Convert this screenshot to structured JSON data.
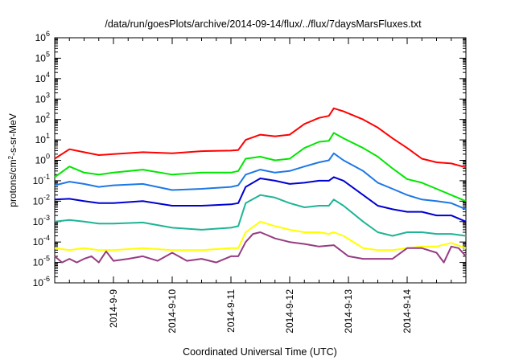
{
  "chart_data": {
    "type": "line",
    "title": "/data/run/goesPlots/archive/2014-09-14/flux/../flux/7daysMarsFluxes.txt",
    "xlabel": "Coordinated Universal Time (UTC)",
    "ylabel": {
      "base": "protons/cm",
      "sup": "2",
      "rest": "-s-sr-MeV"
    },
    "x_range": [
      "2014-09-08T00:00",
      "2014-09-15T00:00"
    ],
    "x_ticks": [
      "2014-9-9",
      "2014-9-10",
      "2014-9-11",
      "2014-9-12",
      "2014-9-13",
      "2014-9-14"
    ],
    "y_scale": "log",
    "y_range_exp": [
      -6,
      6
    ],
    "y_ticks_exp": [
      -6,
      -5,
      -4,
      -3,
      -2,
      -1,
      0,
      1,
      2,
      3,
      4,
      5,
      6
    ],
    "y_tick_base": "10",
    "grid": false,
    "legend": "none",
    "series": [
      {
        "color": "#ff0000",
        "x": [
          "2014-09-08T00:00",
          "2014-09-08T06:00",
          "2014-09-08T12:00",
          "2014-09-08T18:00",
          "2014-09-09T00:00",
          "2014-09-09T12:00",
          "2014-09-10T00:00",
          "2014-09-10T12:00",
          "2014-09-11T00:00",
          "2014-09-11T03:00",
          "2014-09-11T06:00",
          "2014-09-11T12:00",
          "2014-09-11T18:00",
          "2014-09-12T00:00",
          "2014-09-12T06:00",
          "2014-09-12T12:00",
          "2014-09-12T16:00",
          "2014-09-12T18:00",
          "2014-09-12T22:00",
          "2014-09-13T06:00",
          "2014-09-13T12:00",
          "2014-09-13T18:00",
          "2014-09-14T00:00",
          "2014-09-14T06:00",
          "2014-09-14T12:00",
          "2014-09-14T18:00",
          "2014-09-15T00:00"
        ],
        "y": [
          1.2,
          3.5,
          2.5,
          1.8,
          2.0,
          2.5,
          2.2,
          2.8,
          3.0,
          3.2,
          10,
          18,
          15,
          18,
          60,
          120,
          150,
          350,
          250,
          100,
          40,
          12,
          4,
          1.2,
          0.8,
          0.7,
          0.45
        ]
      },
      {
        "color": "#00e600",
        "x": [
          "2014-09-08T00:00",
          "2014-09-08T06:00",
          "2014-09-08T12:00",
          "2014-09-08T18:00",
          "2014-09-09T00:00",
          "2014-09-09T12:00",
          "2014-09-10T00:00",
          "2014-09-10T12:00",
          "2014-09-11T00:00",
          "2014-09-11T03:00",
          "2014-09-11T06:00",
          "2014-09-11T12:00",
          "2014-09-11T18:00",
          "2014-09-12T00:00",
          "2014-09-12T06:00",
          "2014-09-12T12:00",
          "2014-09-12T16:00",
          "2014-09-12T18:00",
          "2014-09-12T22:00",
          "2014-09-13T06:00",
          "2014-09-13T12:00",
          "2014-09-13T18:00",
          "2014-09-14T00:00",
          "2014-09-14T06:00",
          "2014-09-14T12:00",
          "2014-09-14T18:00",
          "2014-09-15T00:00"
        ],
        "y": [
          0.15,
          0.5,
          0.25,
          0.2,
          0.25,
          0.35,
          0.2,
          0.25,
          0.25,
          0.3,
          1.2,
          1.5,
          1.0,
          1.2,
          4,
          8,
          9,
          22,
          12,
          4,
          1.5,
          0.4,
          0.12,
          0.08,
          0.04,
          0.02,
          0.01
        ]
      },
      {
        "color": "#1e78e6",
        "x": [
          "2014-09-08T00:00",
          "2014-09-08T06:00",
          "2014-09-08T12:00",
          "2014-09-08T18:00",
          "2014-09-09T00:00",
          "2014-09-09T12:00",
          "2014-09-10T00:00",
          "2014-09-10T12:00",
          "2014-09-11T00:00",
          "2014-09-11T03:00",
          "2014-09-11T06:00",
          "2014-09-11T12:00",
          "2014-09-11T18:00",
          "2014-09-12T00:00",
          "2014-09-12T06:00",
          "2014-09-12T12:00",
          "2014-09-12T16:00",
          "2014-09-12T18:00",
          "2014-09-12T22:00",
          "2014-09-13T06:00",
          "2014-09-13T12:00",
          "2014-09-13T18:00",
          "2014-09-14T00:00",
          "2014-09-14T06:00",
          "2014-09-14T12:00",
          "2014-09-14T18:00",
          "2014-09-15T00:00"
        ],
        "y": [
          0.06,
          0.09,
          0.07,
          0.05,
          0.06,
          0.07,
          0.035,
          0.04,
          0.05,
          0.06,
          0.2,
          0.35,
          0.25,
          0.3,
          0.5,
          0.8,
          1.0,
          2.2,
          1.0,
          0.3,
          0.08,
          0.04,
          0.02,
          0.012,
          0.01,
          0.008,
          0.004
        ]
      },
      {
        "color": "#0000d2",
        "x": [
          "2014-09-08T00:00",
          "2014-09-08T06:00",
          "2014-09-08T12:00",
          "2014-09-08T18:00",
          "2014-09-09T00:00",
          "2014-09-09T12:00",
          "2014-09-10T00:00",
          "2014-09-10T12:00",
          "2014-09-11T00:00",
          "2014-09-11T03:00",
          "2014-09-11T06:00",
          "2014-09-11T12:00",
          "2014-09-11T18:00",
          "2014-09-12T00:00",
          "2014-09-12T06:00",
          "2014-09-12T12:00",
          "2014-09-12T16:00",
          "2014-09-12T18:00",
          "2014-09-12T22:00",
          "2014-09-13T06:00",
          "2014-09-13T12:00",
          "2014-09-13T18:00",
          "2014-09-14T00:00",
          "2014-09-14T06:00",
          "2014-09-14T12:00",
          "2014-09-14T18:00",
          "2014-09-15T00:00"
        ],
        "y": [
          0.012,
          0.013,
          0.01,
          0.008,
          0.008,
          0.01,
          0.006,
          0.006,
          0.007,
          0.008,
          0.05,
          0.13,
          0.1,
          0.07,
          0.08,
          0.1,
          0.1,
          0.15,
          0.1,
          0.02,
          0.006,
          0.004,
          0.003,
          0.003,
          0.002,
          0.002,
          0.001
        ]
      },
      {
        "color": "#1eb496",
        "x": [
          "2014-09-08T00:00",
          "2014-09-08T06:00",
          "2014-09-08T12:00",
          "2014-09-08T18:00",
          "2014-09-09T00:00",
          "2014-09-09T12:00",
          "2014-09-10T00:00",
          "2014-09-10T12:00",
          "2014-09-11T00:00",
          "2014-09-11T03:00",
          "2014-09-11T06:00",
          "2014-09-11T12:00",
          "2014-09-11T18:00",
          "2014-09-12T00:00",
          "2014-09-12T06:00",
          "2014-09-12T12:00",
          "2014-09-12T16:00",
          "2014-09-12T18:00",
          "2014-09-12T22:00",
          "2014-09-13T06:00",
          "2014-09-13T12:00",
          "2014-09-13T18:00",
          "2014-09-14T00:00",
          "2014-09-14T06:00",
          "2014-09-14T12:00",
          "2014-09-14T18:00",
          "2014-09-15T00:00"
        ],
        "y": [
          0.001,
          0.0012,
          0.001,
          0.0008,
          0.0008,
          0.0009,
          0.0005,
          0.0004,
          0.0005,
          0.0006,
          0.008,
          0.02,
          0.015,
          0.008,
          0.005,
          0.006,
          0.006,
          0.012,
          0.006,
          0.001,
          0.0003,
          0.0002,
          0.0003,
          0.0003,
          0.00025,
          0.00025,
          0.0002
        ]
      },
      {
        "color": "#ffff00",
        "x": [
          "2014-09-08T00:00",
          "2014-09-08T06:00",
          "2014-09-08T12:00",
          "2014-09-08T18:00",
          "2014-09-09T00:00",
          "2014-09-09T12:00",
          "2014-09-10T00:00",
          "2014-09-10T12:00",
          "2014-09-11T00:00",
          "2014-09-11T03:00",
          "2014-09-11T06:00",
          "2014-09-11T12:00",
          "2014-09-11T18:00",
          "2014-09-12T00:00",
          "2014-09-12T06:00",
          "2014-09-12T12:00",
          "2014-09-12T16:00",
          "2014-09-12T18:00",
          "2014-09-12T22:00",
          "2014-09-13T06:00",
          "2014-09-13T12:00",
          "2014-09-13T18:00",
          "2014-09-14T00:00",
          "2014-09-14T06:00",
          "2014-09-14T12:00",
          "2014-09-14T18:00",
          "2014-09-15T00:00"
        ],
        "y": [
          5e-05,
          4e-05,
          5e-05,
          4e-05,
          4e-05,
          5e-05,
          4e-05,
          4e-05,
          5e-05,
          5e-05,
          0.0003,
          0.001,
          0.0006,
          0.0004,
          0.0003,
          0.0003,
          0.00025,
          0.0003,
          0.0002,
          5e-05,
          4e-05,
          4e-05,
          5e-05,
          6e-05,
          6e-05,
          9e-05,
          5e-05
        ]
      },
      {
        "color": "#963c82",
        "x": [
          "2014-09-08T00:00",
          "2014-09-08T03:00",
          "2014-09-08T06:00",
          "2014-09-08T09:00",
          "2014-09-08T12:00",
          "2014-09-08T15:00",
          "2014-09-08T18:00",
          "2014-09-08T21:00",
          "2014-09-09T00:00",
          "2014-09-09T06:00",
          "2014-09-09T12:00",
          "2014-09-09T18:00",
          "2014-09-10T00:00",
          "2014-09-10T06:00",
          "2014-09-10T12:00",
          "2014-09-10T18:00",
          "2014-09-11T00:00",
          "2014-09-11T03:00",
          "2014-09-11T06:00",
          "2014-09-11T09:00",
          "2014-09-11T12:00",
          "2014-09-11T18:00",
          "2014-09-12T00:00",
          "2014-09-12T06:00",
          "2014-09-12T12:00",
          "2014-09-12T18:00",
          "2014-09-13T00:00",
          "2014-09-13T06:00",
          "2014-09-13T12:00",
          "2014-09-13T18:00",
          "2014-09-14T00:00",
          "2014-09-14T06:00",
          "2014-09-14T12:00",
          "2014-09-14T15:00",
          "2014-09-14T18:00",
          "2014-09-14T21:00",
          "2014-09-15T00:00"
        ],
        "y": [
          2e-05,
          1e-05,
          1.5e-05,
          1e-05,
          1.5e-05,
          2e-05,
          1e-05,
          3.5e-05,
          1.2e-05,
          1.5e-05,
          2e-05,
          1.2e-05,
          3e-05,
          1.2e-05,
          1.5e-05,
          1e-05,
          2e-05,
          2e-05,
          0.0001,
          0.00025,
          0.0003,
          0.00015,
          0.0001,
          8e-05,
          6e-05,
          7e-05,
          2e-05,
          1.5e-05,
          1.5e-05,
          1.5e-05,
          5e-05,
          5e-05,
          3e-05,
          1e-05,
          6e-05,
          5e-05,
          2e-05
        ]
      }
    ]
  }
}
